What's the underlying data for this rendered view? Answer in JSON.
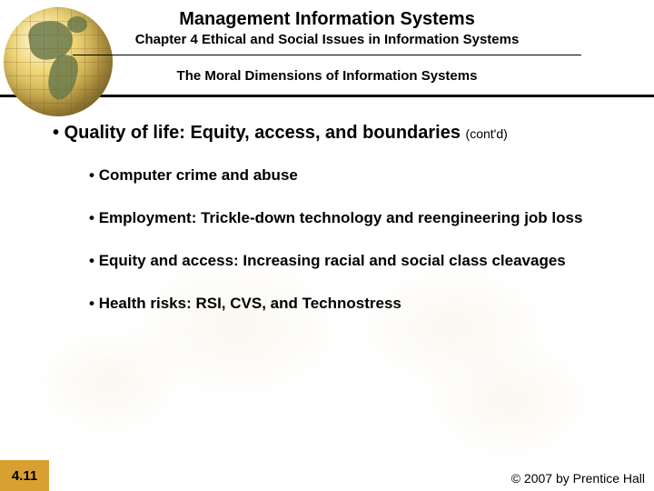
{
  "header": {
    "title": "Management Information Systems",
    "subtitle": "Chapter 4 Ethical and Social Issues in Information Systems",
    "section_title": "The Moral Dimensions of Information Systems"
  },
  "content": {
    "main_bullet": "Quality of life: Equity, access, and boundaries",
    "main_bullet_suffix": "(cont'd)",
    "sub_bullets": [
      "Computer crime and abuse",
      "Employment: Trickle-down technology and reengineering job loss",
      "Equity and access: Increasing racial and social class cleavages",
      "Health risks: RSI, CVS, and Technostress"
    ]
  },
  "footer": {
    "slide_number": "4.11",
    "copyright": "© 2007 by Prentice Hall"
  },
  "style": {
    "slide_width": 720,
    "slide_height": 540,
    "title_fontsize": 20,
    "subtitle_fontsize": 15,
    "section_title_fontsize": 15,
    "main_bullet_fontsize": 20,
    "sub_bullet_fontsize": 17,
    "footer_fontsize": 14,
    "accent_color": "#d8a030",
    "text_color": "#000000",
    "background_color": "#ffffff",
    "map_tint": "#f5f0e0",
    "globe_land_color": "#6b7a4a",
    "globe_highlight": "#fffbe6",
    "globe_mid": "#c9a84a",
    "globe_shadow": "#8b6f2e"
  }
}
